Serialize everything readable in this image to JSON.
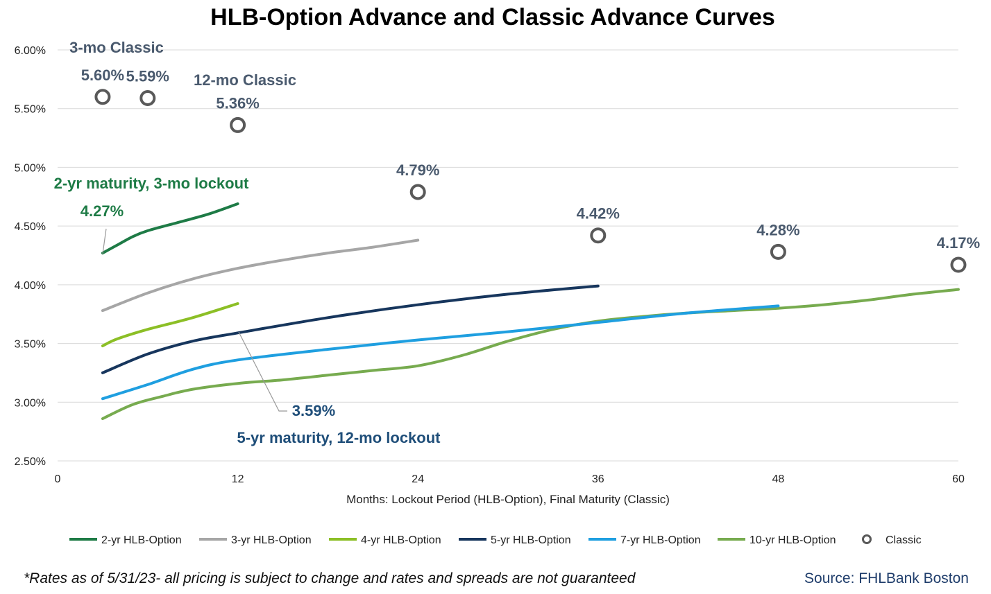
{
  "chart_data": {
    "type": "line",
    "title": "HLB-Option Advance and Classic Advance Curves",
    "xlabel": "Months: Lockout Period (HLB-Option), Final Maturity (Classic)",
    "ylabel": "",
    "xlim": [
      0,
      60
    ],
    "ylim": [
      2.5,
      6.0
    ],
    "x_ticks": [
      0,
      12,
      24,
      36,
      48,
      60
    ],
    "x_tick_labels": [
      "0",
      "12",
      "24",
      "36",
      "48",
      "60"
    ],
    "y_ticks": [
      2.5,
      3.0,
      3.5,
      4.0,
      4.5,
      5.0,
      5.5,
      6.0
    ],
    "y_tick_labels": [
      "2.50%",
      "3.00%",
      "3.50%",
      "4.00%",
      "4.50%",
      "5.00%",
      "5.50%",
      "6.00%"
    ],
    "grid": "horizontal",
    "legend_position": "bottom",
    "series": [
      {
        "name": "2-yr HLB-Option",
        "color": "#1e7b46",
        "points": [
          [
            3,
            4.27
          ],
          [
            4,
            4.34
          ],
          [
            5,
            4.41
          ],
          [
            6,
            4.46
          ],
          [
            8,
            4.53
          ],
          [
            10,
            4.6
          ],
          [
            12,
            4.69
          ]
        ]
      },
      {
        "name": "3-yr HLB-Option",
        "color": "#a6a6a6",
        "points": [
          [
            3,
            3.78
          ],
          [
            6,
            3.93
          ],
          [
            9,
            4.05
          ],
          [
            12,
            4.14
          ],
          [
            15,
            4.21
          ],
          [
            18,
            4.27
          ],
          [
            21,
            4.32
          ],
          [
            24,
            4.38
          ]
        ]
      },
      {
        "name": "4-yr HLB-Option",
        "color": "#8cbf26",
        "points": [
          [
            3,
            3.48
          ],
          [
            4,
            3.54
          ],
          [
            6,
            3.62
          ],
          [
            9,
            3.72
          ],
          [
            12,
            3.84
          ]
        ]
      },
      {
        "name": "5-yr HLB-Option",
        "color": "#17365d",
        "points": [
          [
            3,
            3.25
          ],
          [
            6,
            3.41
          ],
          [
            9,
            3.52
          ],
          [
            12,
            3.59
          ],
          [
            18,
            3.72
          ],
          [
            24,
            3.83
          ],
          [
            30,
            3.92
          ],
          [
            36,
            3.99
          ]
        ]
      },
      {
        "name": "7-yr HLB-Option",
        "color": "#1f9fe0",
        "points": [
          [
            3,
            3.03
          ],
          [
            6,
            3.15
          ],
          [
            9,
            3.28
          ],
          [
            12,
            3.36
          ],
          [
            18,
            3.45
          ],
          [
            24,
            3.53
          ],
          [
            30,
            3.6
          ],
          [
            36,
            3.68
          ],
          [
            42,
            3.76
          ],
          [
            48,
            3.82
          ]
        ]
      },
      {
        "name": "10-yr HLB-Option",
        "color": "#77ab4f",
        "points": [
          [
            3,
            2.86
          ],
          [
            5,
            2.98
          ],
          [
            7,
            3.05
          ],
          [
            9,
            3.11
          ],
          [
            12,
            3.16
          ],
          [
            15,
            3.19
          ],
          [
            18,
            3.23
          ],
          [
            21,
            3.27
          ],
          [
            24,
            3.31
          ],
          [
            27,
            3.4
          ],
          [
            30,
            3.52
          ],
          [
            33,
            3.62
          ],
          [
            36,
            3.69
          ],
          [
            39,
            3.73
          ],
          [
            42,
            3.76
          ],
          [
            45,
            3.78
          ],
          [
            48,
            3.8
          ],
          [
            51,
            3.83
          ],
          [
            54,
            3.87
          ],
          [
            57,
            3.92
          ],
          [
            60,
            3.96
          ]
        ]
      }
    ],
    "classic": {
      "name": "Classic",
      "color": "#595959",
      "points": [
        [
          3,
          5.6
        ],
        [
          6,
          5.59
        ],
        [
          12,
          5.36
        ],
        [
          24,
          4.79
        ],
        [
          36,
          4.42
        ],
        [
          48,
          4.28
        ],
        [
          60,
          4.17
        ]
      ],
      "labels": [
        "5.60%",
        "5.59%",
        "5.36%",
        "4.79%",
        "4.42%",
        "4.28%",
        "4.17%"
      ]
    },
    "annotations": {
      "classic_3mo": "3-mo Classic",
      "classic_12mo": "12-mo Classic",
      "series_2yr_title": "2-yr maturity, 3-mo lockout",
      "series_2yr_value": "4.27%",
      "series_5yr_value": "3.59%",
      "series_5yr_title": "5-yr maturity, 12-mo lockout",
      "green_color": "#1e7b46",
      "blue_color": "#1f4e79",
      "classic_label_color": "#4a5a6e"
    }
  },
  "footnote": "*Rates as of 5/31/23- all pricing is subject to change and rates and spreads are not guaranteed",
  "source": "Source: FHLBank Boston"
}
